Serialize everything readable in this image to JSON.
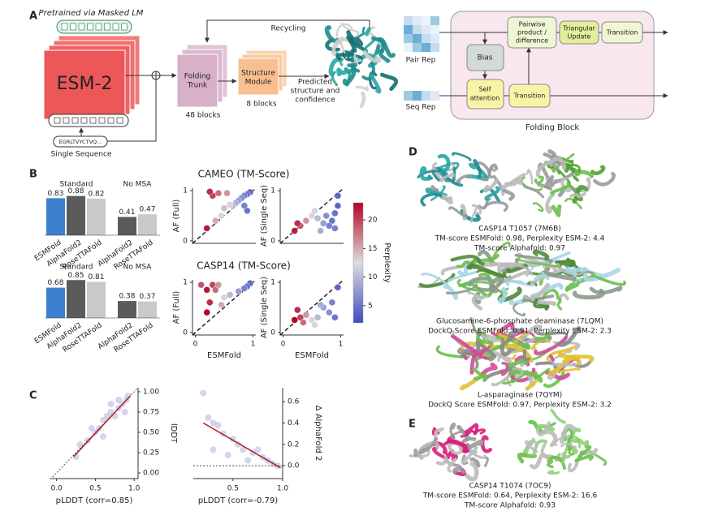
{
  "panel_a": {
    "label": "A",
    "pretrained": "Pretrained via Masked LM",
    "esm": "ESM-2",
    "sequence": "EGRLTVYCTVQ...",
    "single_sequence": "Single Sequence",
    "recycling": "Recycling",
    "folding_trunk": [
      "Folding",
      "Trunk"
    ],
    "trunk_blocks": "48 blocks",
    "structure_module": [
      "Structure",
      "Module"
    ],
    "module_blocks": "8 blocks",
    "predicted": [
      "Predicted",
      "structure and",
      "confidence"
    ],
    "pair_rep": "Pair Rep",
    "seq_rep": "Seq Rep",
    "bias": "Bias",
    "pairwise": [
      "Pairwise",
      "product /",
      "difference"
    ],
    "triangular": [
      "Triangular",
      "Update"
    ],
    "transition_pair": "Transition",
    "self_attention": [
      "Self",
      "attention"
    ],
    "transition_seq": "Transition",
    "folding_block": "Folding Block"
  },
  "panel_b": {
    "label": "B",
    "cameo_title": "CAMEO (TM-Score)",
    "casp_title": "CASP14 (TM-Score)"
  },
  "panel_c": {
    "label": "C"
  },
  "chart_data": [
    {
      "type": "bar",
      "group_labels": [
        "Standard",
        "No MSA"
      ],
      "categories": [
        "ESMFold",
        "AlphaFold2",
        "RoseTTAFold",
        "AlphaFold2",
        "RoseTTAFold"
      ],
      "values": [
        0.83,
        0.88,
        0.82,
        0.41,
        0.47
      ],
      "colors": [
        "#3d80cf",
        "#5b5b5b",
        "#c9c9c9",
        "#5b5b5b",
        "#c9c9c9"
      ]
    },
    {
      "type": "bar",
      "group_labels": [
        "Standard",
        "No MSA"
      ],
      "categories": [
        "ESMFold",
        "AlphaFold2",
        "RoseTTAFold",
        "AlphaFold2",
        "RoseTTAFold"
      ],
      "values": [
        0.68,
        0.85,
        0.81,
        0.38,
        0.37
      ],
      "colors": [
        "#3d80cf",
        "#5b5b5b",
        "#c9c9c9",
        "#5b5b5b",
        "#c9c9c9"
      ]
    },
    {
      "type": "scatter",
      "ylabel": "AF (Full)",
      "xlim": [
        -0.05,
        1.05
      ],
      "ylim": [
        -0.05,
        1.05
      ],
      "yticks": [
        0,
        1
      ],
      "diagonal": true,
      "x": [
        0.95,
        0.9,
        0.85,
        0.8,
        0.75,
        0.7,
        0.65,
        0.6,
        0.5,
        0.4,
        0.3,
        0.25,
        0.55,
        0.2,
        0.9,
        0.85,
        0.45,
        0.35
      ],
      "y": [
        0.97,
        0.93,
        0.9,
        0.85,
        0.8,
        0.75,
        0.7,
        0.72,
        0.65,
        0.95,
        0.9,
        0.98,
        0.95,
        0.25,
        0.6,
        0.7,
        0.5,
        0.4
      ],
      "perplexity": [
        4,
        5,
        6,
        7,
        8,
        9,
        10,
        12,
        14,
        18,
        20,
        21,
        16,
        22,
        5,
        6,
        13,
        15
      ]
    },
    {
      "type": "scatter",
      "ylabel": "AF (Single Seq)",
      "xlim": [
        -0.05,
        1.05
      ],
      "ylim": [
        -0.05,
        1.05
      ],
      "yticks": [
        0,
        1
      ],
      "diagonal": true,
      "x": [
        0.95,
        0.9,
        0.85,
        0.8,
        0.75,
        0.7,
        0.6,
        0.5,
        0.4,
        0.3,
        0.25,
        0.9,
        0.65,
        0.95,
        0.2,
        0.55
      ],
      "y": [
        0.9,
        0.55,
        0.4,
        0.3,
        0.5,
        0.35,
        0.45,
        0.5,
        0.4,
        0.3,
        0.35,
        0.25,
        0.2,
        0.7,
        0.2,
        0.6
      ],
      "perplexity": [
        4,
        5,
        5,
        6,
        7,
        8,
        10,
        13,
        16,
        19,
        21,
        6,
        9,
        4,
        22,
        12
      ]
    },
    {
      "type": "scatter",
      "ylabel": "AF (Full)",
      "xlabel": "ESMFold",
      "xlim": [
        -0.05,
        1.05
      ],
      "ylim": [
        -0.05,
        1.05
      ],
      "xticks": [
        0,
        1
      ],
      "yticks": [
        0,
        1
      ],
      "diagonal": true,
      "x": [
        0.95,
        0.9,
        0.85,
        0.75,
        0.6,
        0.5,
        0.3,
        0.2,
        0.35,
        0.25,
        0.2,
        0.45,
        0.1,
        0.4
      ],
      "y": [
        0.98,
        0.92,
        0.88,
        0.82,
        0.75,
        0.7,
        0.95,
        0.85,
        0.85,
        0.6,
        0.4,
        0.55,
        0.95,
        0.95
      ],
      "perplexity": [
        4,
        5,
        6,
        8,
        10,
        13,
        20,
        22,
        18,
        21,
        23,
        15,
        19,
        16
      ]
    },
    {
      "type": "scatter",
      "ylabel": "AF (Single Seq)",
      "xlabel": "ESMFold",
      "xlim": [
        -0.05,
        1.05
      ],
      "ylim": [
        -0.05,
        1.05
      ],
      "xticks": [
        0,
        1
      ],
      "yticks": [
        0,
        1
      ],
      "diagonal": true,
      "x": [
        0.95,
        0.85,
        0.8,
        0.7,
        0.6,
        0.5,
        0.4,
        0.3,
        0.25,
        0.2,
        0.9,
        0.65,
        0.35,
        0.55
      ],
      "y": [
        0.9,
        0.6,
        0.4,
        0.5,
        0.3,
        0.25,
        0.35,
        0.3,
        0.45,
        0.25,
        0.3,
        0.55,
        0.2,
        0.15
      ],
      "perplexity": [
        4,
        6,
        7,
        8,
        10,
        13,
        16,
        20,
        21,
        23,
        5,
        9,
        18,
        12
      ]
    },
    {
      "type": "colorbar",
      "label": "Perplexity",
      "zlim": [
        2,
        23
      ],
      "zticks": [
        5,
        10,
        15,
        20
      ],
      "colors": [
        "#3b4cc0",
        "#dddddd",
        "#b40426"
      ]
    },
    {
      "type": "regression",
      "xlabel": "pLDDT (corr=0.85)",
      "ylabel": "lDDT",
      "xlim": [
        -0.08,
        1.05
      ],
      "ylim": [
        -0.07,
        1.05
      ],
      "xticks": [
        {
          "value": 0,
          "label": "0.0"
        },
        0.5,
        {
          "value": 1,
          "label": "1.0"
        }
      ],
      "yticks": [
        {
          "value": 0,
          "label": "0.00"
        },
        0.25,
        {
          "value": 0.5,
          "label": "0.50"
        },
        0.75,
        {
          "value": 1,
          "label": "1.00"
        }
      ],
      "diagonal": true,
      "point_color": "#c5c5e8",
      "fit_color": "#b22222",
      "x": [
        0.25,
        0.3,
        0.4,
        0.5,
        0.55,
        0.6,
        0.65,
        0.7,
        0.75,
        0.8,
        0.85,
        0.9,
        0.92,
        0.8,
        0.7,
        0.6,
        0.45,
        0.88
      ],
      "y": [
        0.2,
        0.35,
        0.4,
        0.5,
        0.55,
        0.65,
        0.7,
        0.75,
        0.7,
        0.8,
        0.85,
        0.9,
        0.95,
        0.9,
        0.85,
        0.45,
        0.55,
        0.75
      ],
      "fit_x": [
        0.22,
        0.95
      ],
      "fit_y": [
        0.2,
        0.95
      ]
    },
    {
      "type": "regression",
      "xlabel": "pLDDT (corr=-0.79)",
      "ylabel": "Δ AlphaFold 2",
      "xlim": [
        0.1,
        1.0
      ],
      "ylim": [
        -0.12,
        0.73
      ],
      "xticks": [
        0.5,
        {
          "value": 1,
          "label": "1.0"
        }
      ],
      "yticks": [
        {
          "value": 0,
          "label": "0.0"
        },
        0.2,
        0.4,
        0.6
      ],
      "zero_line": true,
      "point_color": "#c5c5e8",
      "fit_color": "#b22222",
      "x": [
        0.2,
        0.25,
        0.3,
        0.35,
        0.4,
        0.5,
        0.55,
        0.6,
        0.7,
        0.8,
        0.85,
        0.9,
        0.95,
        0.45,
        0.65,
        0.75,
        0.3
      ],
      "y": [
        0.68,
        0.45,
        0.4,
        0.38,
        0.3,
        0.25,
        0.2,
        0.15,
        0.12,
        0.08,
        0.05,
        0.02,
        0.0,
        0.1,
        0.05,
        0.15,
        0.15
      ],
      "fit_x": [
        0.2,
        0.98
      ],
      "fit_y": [
        0.4,
        -0.02
      ]
    }
  ],
  "panel_d": {
    "label": "D",
    "items": [
      {
        "caption": [
          "CASP14 T1057 (7M6B)",
          "TM-score ESMFold: 0.98, Perplexity ESM-2: 4.4",
          "TM-score Alphafold: 0.97"
        ]
      },
      {
        "caption": [
          "Glucosamine-6-phosphate deaminase (7LQM)",
          "DockQ Score ESMFold: 0.91, Perplexity ESM-2: 2.3"
        ]
      },
      {
        "caption": [
          "L-asparaginase (7QYM)",
          "DockQ Score ESMFold: 0.97, Perplexity ESM-2: 3.2"
        ]
      }
    ]
  },
  "panel_e": {
    "label": "E",
    "caption": [
      "CASP14 T1074 (7OC9)",
      "TM-score ESMFold: 0.64, Perplexity ESM-2: 16.6",
      "TM-score Alphafold: 0.93"
    ]
  }
}
